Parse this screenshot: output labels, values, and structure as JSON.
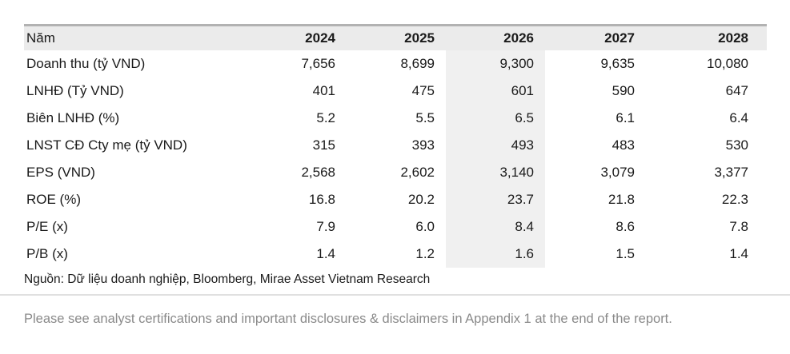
{
  "table": {
    "header": {
      "label": "Năm",
      "years": [
        "2024",
        "2025",
        "2026",
        "2027",
        "2028"
      ]
    },
    "highlighted_year": "2026",
    "rows": [
      {
        "label": "Doanh thu (tỷ VND)",
        "values": [
          "7,656",
          "8,699",
          "9,300",
          "9,635",
          "10,080"
        ]
      },
      {
        "label": "LNHĐ (Tỷ VND)",
        "values": [
          "401",
          "475",
          "601",
          "590",
          "647"
        ]
      },
      {
        "label": "Biên LNHĐ (%)",
        "values": [
          "5.2",
          "5.5",
          "6.5",
          "6.1",
          "6.4"
        ]
      },
      {
        "label": "LNST CĐ Cty mẹ (tỷ VND)",
        "values": [
          "315",
          "393",
          "493",
          "483",
          "530"
        ]
      },
      {
        "label": "EPS (VND)",
        "values": [
          "2,568",
          "2,602",
          "3,140",
          "3,079",
          "3,377"
        ]
      },
      {
        "label": "ROE (%)",
        "values": [
          "16.8",
          "20.2",
          "23.7",
          "21.8",
          "22.3"
        ]
      },
      {
        "label": "P/E (x)",
        "values": [
          "7.9",
          "6.0",
          "8.4",
          "8.6",
          "7.8"
        ]
      },
      {
        "label": "P/B (x)",
        "values": [
          "1.4",
          "1.2",
          "1.6",
          "1.5",
          "1.4"
        ]
      }
    ],
    "source": "Nguồn: Dữ liệu doanh nghiệp, Bloomberg, Mirae Asset Vietnam Research"
  },
  "footer": {
    "disclaimer": "Please see analyst certifications and important disclosures & disclaimers in Appendix 1 at the end of the report."
  },
  "colors": {
    "header_bg": "#ebebeb",
    "highlight_bg": "#f0f0f0",
    "table_top_border": "#b2b2b2",
    "divider": "#e0e0e0",
    "text": "#1a1a1a",
    "muted_text": "#8a8a8a"
  }
}
